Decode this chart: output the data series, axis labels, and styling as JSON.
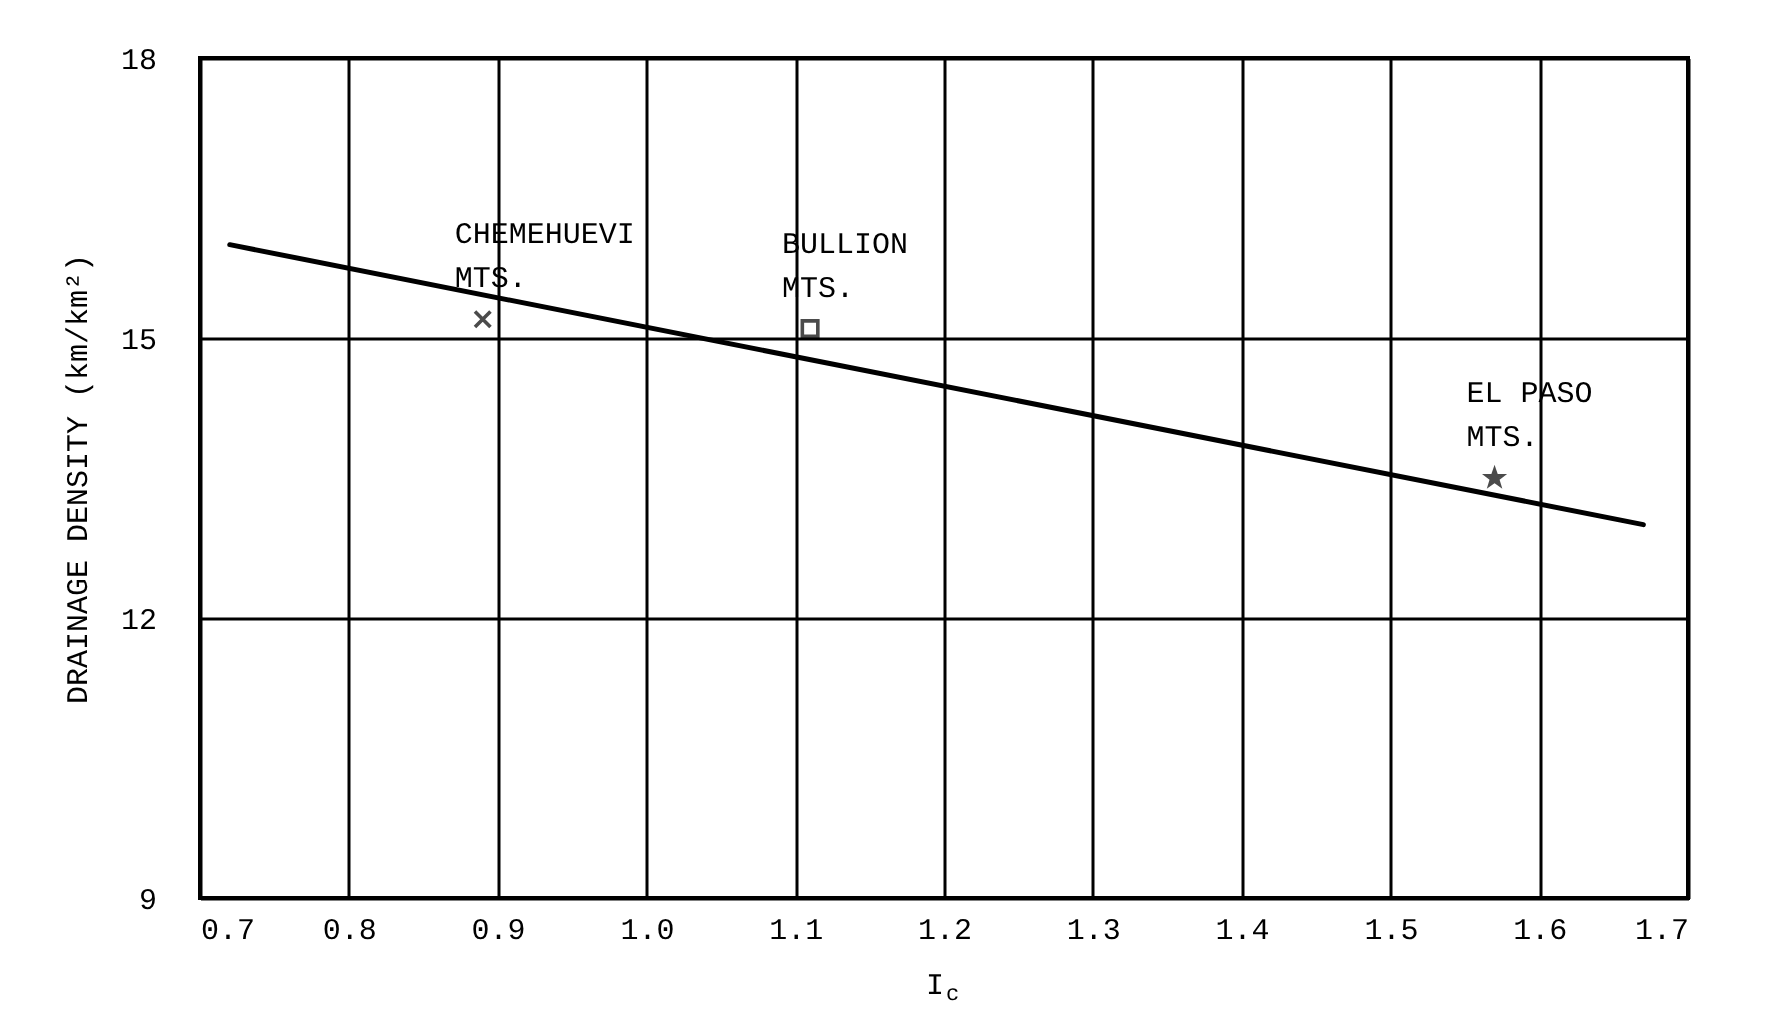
{
  "chart_data": {
    "type": "scatter",
    "xlabel": "I$_{c}$",
    "ylabel": "DRAINAGE DENSITY  (km/km²)",
    "xlim": [
      0.7,
      1.7
    ],
    "xticks": [
      {
        "value": 0.7,
        "label": "0.7"
      },
      {
        "value": 0.8,
        "label": "0.8"
      },
      {
        "value": 0.9,
        "label": "0.9"
      },
      {
        "value": 1.0,
        "label": "1.0"
      },
      {
        "value": 1.1,
        "label": "1.1"
      },
      {
        "value": 1.2,
        "label": "1.2"
      },
      {
        "value": 1.3,
        "label": "1.3"
      },
      {
        "value": 1.4,
        "label": "1.4"
      },
      {
        "value": 1.5,
        "label": "1.5"
      },
      {
        "value": 1.6,
        "label": "1.6"
      },
      {
        "value": 1.7,
        "label": "1.7"
      }
    ],
    "ylim": [
      9,
      18
    ],
    "yticks": [
      9,
      12,
      15,
      18
    ],
    "grid": true,
    "series": [
      {
        "marker": "cross",
        "color": "#000000",
        "x": [
          0.89
        ],
        "values": [
          15.2
        ]
      },
      {
        "marker": "square",
        "color": "#000000",
        "x": [
          1.11
        ],
        "values": [
          15.1
        ]
      },
      {
        "marker": "star",
        "color": "#000000",
        "x": [
          1.57
        ],
        "values": [
          13.5
        ]
      },
      {
        "type": "line",
        "marker": "none",
        "color": "#000000",
        "x": [
          0.72,
          1.67
        ],
        "values": [
          16.0,
          13.0
        ]
      }
    ],
    "annotations": [
      {
        "text": "CHEMEHUEVI\nMTS.",
        "x": 0.89,
        "y": 15.2
      },
      {
        "text": "BULLION\nMTS.",
        "x": 1.11,
        "y": 15.1
      },
      {
        "text": "EL PASO\nMTS.",
        "x": 1.57,
        "y": 13.5
      }
    ]
  }
}
